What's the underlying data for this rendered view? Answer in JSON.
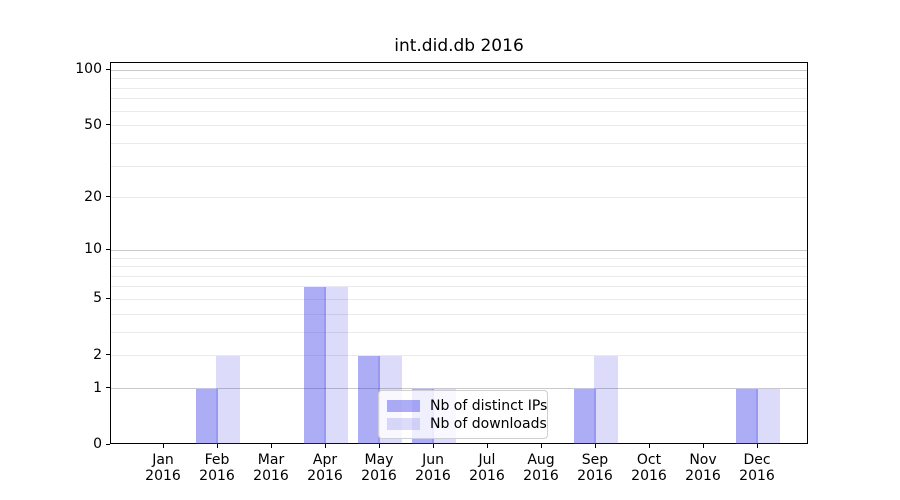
{
  "title": "int.did.db 2016",
  "chart_data": {
    "type": "bar",
    "title": "int.did.db 2016",
    "categories": [
      "Jan",
      "Feb",
      "Mar",
      "Apr",
      "May",
      "Jun",
      "Jul",
      "Aug",
      "Sep",
      "Oct",
      "Nov",
      "Dec"
    ],
    "year_label": "2016",
    "series": [
      {
        "name": "Nb of distinct IPs",
        "color": "#adadf4",
        "values": [
          0,
          1,
          0,
          6,
          2,
          1,
          0,
          0,
          1,
          0,
          0,
          1
        ]
      },
      {
        "name": "Nb of downloads",
        "color": "#dcdcfa",
        "values": [
          0,
          2,
          0,
          6,
          2,
          1,
          0,
          0,
          2,
          0,
          0,
          1
        ]
      }
    ],
    "y_ticks": [
      0,
      1,
      2,
      5,
      10,
      20,
      50,
      100
    ],
    "ylim": [
      0,
      110
    ],
    "yscale": "log10(value+1)",
    "grid": "horizontal, minor and major lines",
    "legend_position": "inside lower center-right",
    "major_grid_values": [
      1,
      10,
      100
    ],
    "minor_grid_values": [
      2,
      3,
      4,
      5,
      6,
      7,
      8,
      9,
      20,
      30,
      40,
      50,
      60,
      70,
      80,
      90
    ]
  },
  "colors": {
    "bar_dark": "#adadf4",
    "bar_light": "#dcdcfa",
    "grid_major": "#c9c9c9",
    "grid_minor": "#eaeaea",
    "spine": "#000000"
  }
}
